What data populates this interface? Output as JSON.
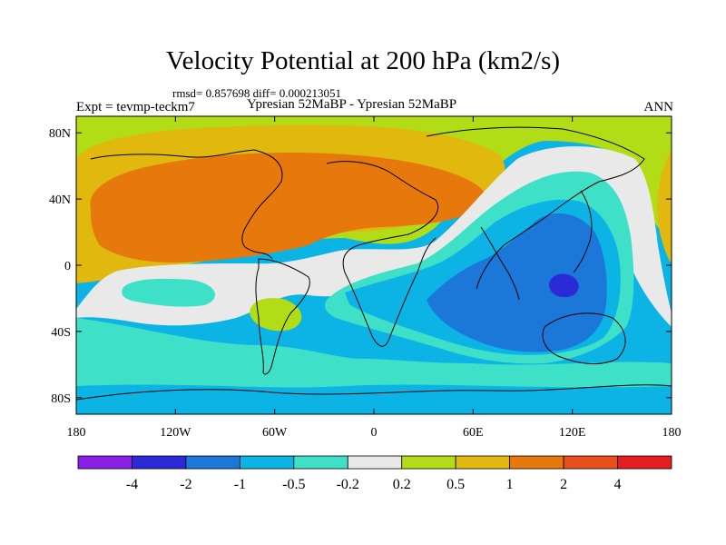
{
  "title": "Velocity Potential at 200 hPa (km2/s)",
  "stats": {
    "rmsd_text": "rmsd= 0.857698 diff= 0.000213051"
  },
  "experiment": "Expt = tevmp-teckm7",
  "subtitle": "Ypresian  52MaBP - Ypresian  52MaBP",
  "season": "ANN",
  "axes": {
    "x_ticks": [
      {
        "lon": -180,
        "label": "180"
      },
      {
        "lon": -120,
        "label": "120W"
      },
      {
        "lon": -60,
        "label": "60W"
      },
      {
        "lon": 0,
        "label": "0"
      },
      {
        "lon": 60,
        "label": "60E"
      },
      {
        "lon": 120,
        "label": "120E"
      },
      {
        "lon": 180,
        "label": "180"
      }
    ],
    "y_ticks": [
      {
        "lat": 80,
        "label": "80N"
      },
      {
        "lat": 40,
        "label": "40N"
      },
      {
        "lat": 0,
        "label": "0"
      },
      {
        "lat": -40,
        "label": "40S"
      },
      {
        "lat": -80,
        "label": "80S"
      }
    ]
  },
  "colorbar": {
    "colors": [
      "#8a1fe6",
      "#2a2ad6",
      "#1b78d9",
      "#0cb4e6",
      "#3fe0c8",
      "#e9e9e9",
      "#b2dc15",
      "#e0b80e",
      "#e6780c",
      "#e8501e",
      "#e41e1e"
    ],
    "labels": [
      "-4",
      "-2",
      "-1",
      "-0.5",
      "-0.2",
      "0.2",
      "0.5",
      "1",
      "2",
      "4"
    ]
  },
  "colors": {
    "pos_strong": "#e6780c",
    "pos_mid": "#e0b80e",
    "pos_weak": "#b2dc15",
    "neutral": "#e9e9e9",
    "neg_weak": "#3fe0c8",
    "neg_mid": "#0cb4e6",
    "neg_strong": "#1b78d9",
    "neg_strongest": "#2a2ad6"
  }
}
